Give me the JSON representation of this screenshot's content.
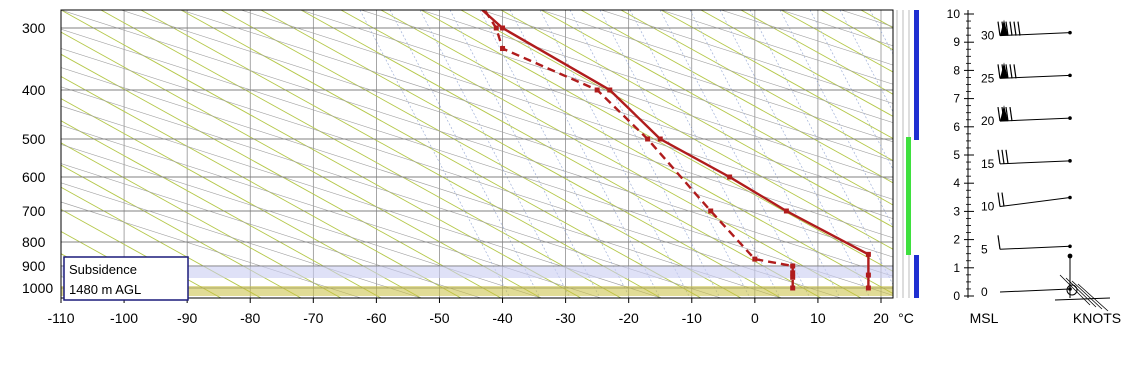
{
  "chart_data": {
    "type": "line",
    "subtype": "skew-t log-p sounding",
    "x_axis": {
      "ticks": [
        -110,
        -100,
        -90,
        -80,
        -70,
        -60,
        -50,
        -40,
        -30,
        -20,
        -10,
        0,
        10,
        20
      ],
      "unit_label": "°C"
    },
    "y_axis": {
      "scale": "log",
      "ticks": [
        300,
        400,
        500,
        600,
        700,
        800,
        900,
        1000
      ]
    },
    "height_axis": {
      "label": "MSL",
      "ticks": [
        0,
        1,
        2,
        3,
        4,
        5,
        6,
        7,
        8,
        9,
        10
      ]
    },
    "wind_axis": {
      "label": "KNOTS",
      "ticks": [
        0,
        5,
        10,
        15,
        20,
        25,
        30
      ]
    },
    "series": [
      {
        "kind": "temperature",
        "style": "solid",
        "color": "#b01c1c",
        "points": [
          {
            "p": 1000,
            "t": 18
          },
          {
            "p": 940,
            "t": 18
          },
          {
            "p": 850,
            "t": 18
          },
          {
            "p": 700,
            "t": 5
          },
          {
            "p": 600,
            "t": -4
          },
          {
            "p": 500,
            "t": -15
          },
          {
            "p": 400,
            "t": -23
          },
          {
            "p": 300,
            "t": -40
          },
          {
            "p": 250,
            "t": -47
          }
        ]
      },
      {
        "kind": "dewpoint",
        "style": "dashed",
        "color": "#b01c1c",
        "points": [
          {
            "p": 1000,
            "t": 6
          },
          {
            "p": 950,
            "t": 6
          },
          {
            "p": 930,
            "t": 6
          },
          {
            "p": 900,
            "t": 6
          },
          {
            "p": 870,
            "t": 0
          },
          {
            "p": 700,
            "t": -7
          },
          {
            "p": 500,
            "t": -17
          },
          {
            "p": 400,
            "t": -25
          },
          {
            "p": 330,
            "t": -40
          },
          {
            "p": 300,
            "t": -41
          },
          {
            "p": 250,
            "t": -45
          }
        ]
      }
    ],
    "annotation": {
      "lines": [
        "Subsidence",
        "1480 m AGL"
      ],
      "layer_hpa": [
        850,
        900
      ]
    },
    "colors": {
      "axis": "#000000",
      "gridline": "#808080",
      "dry_adiabat": "#b5c84a",
      "moist_adiabat": "#9fb0d8",
      "subsidence_band": "#c9cdf2",
      "surface_band": "#c8c040",
      "profile_blue": "#1f2fd1",
      "profile_green": "#3ee03e"
    }
  }
}
